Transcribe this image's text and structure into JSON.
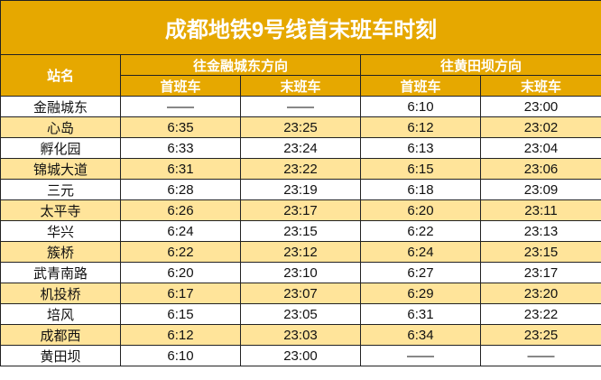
{
  "title": "成都地铁9号线首末班车时刻",
  "header": {
    "station": "站名",
    "direction1": "往金融城东方向",
    "direction2": "往黄田坝方向",
    "first": "首班车",
    "last": "末班车"
  },
  "colors": {
    "header": "#E6A800",
    "alt_row": "#FFE49A"
  },
  "rows": [
    {
      "station": "金融城东",
      "d1_first": "——",
      "d1_last": "——",
      "d2_first": "6:10",
      "d2_last": "23:00"
    },
    {
      "station": "心岛",
      "d1_first": "6:35",
      "d1_last": "23:25",
      "d2_first": "6:12",
      "d2_last": "23:02"
    },
    {
      "station": "孵化园",
      "d1_first": "6:33",
      "d1_last": "23:24",
      "d2_first": "6:13",
      "d2_last": "23:04"
    },
    {
      "station": "锦城大道",
      "d1_first": "6:31",
      "d1_last": "23:22",
      "d2_first": "6:15",
      "d2_last": "23:06"
    },
    {
      "station": "三元",
      "d1_first": "6:28",
      "d1_last": "23:19",
      "d2_first": "6:18",
      "d2_last": "23:09"
    },
    {
      "station": "太平寺",
      "d1_first": "6:26",
      "d1_last": "23:17",
      "d2_first": "6:20",
      "d2_last": "23:11"
    },
    {
      "station": "华兴",
      "d1_first": "6:24",
      "d1_last": "23:15",
      "d2_first": "6:22",
      "d2_last": "23:13"
    },
    {
      "station": "簇桥",
      "d1_first": "6:22",
      "d1_last": "23:12",
      "d2_first": "6:24",
      "d2_last": "23:15"
    },
    {
      "station": "武青南路",
      "d1_first": "6:20",
      "d1_last": "23:10",
      "d2_first": "6:27",
      "d2_last": "23:17"
    },
    {
      "station": "机投桥",
      "d1_first": "6:17",
      "d1_last": "23:07",
      "d2_first": "6:29",
      "d2_last": "23:20"
    },
    {
      "station": "培风",
      "d1_first": "6:15",
      "d1_last": "23:05",
      "d2_first": "6:31",
      "d2_last": "23:22"
    },
    {
      "station": "成都西",
      "d1_first": "6:12",
      "d1_last": "23:03",
      "d2_first": "6:34",
      "d2_last": "23:25"
    },
    {
      "station": "黄田坝",
      "d1_first": "6:10",
      "d1_last": "23:00",
      "d2_first": "——",
      "d2_last": "——"
    }
  ]
}
